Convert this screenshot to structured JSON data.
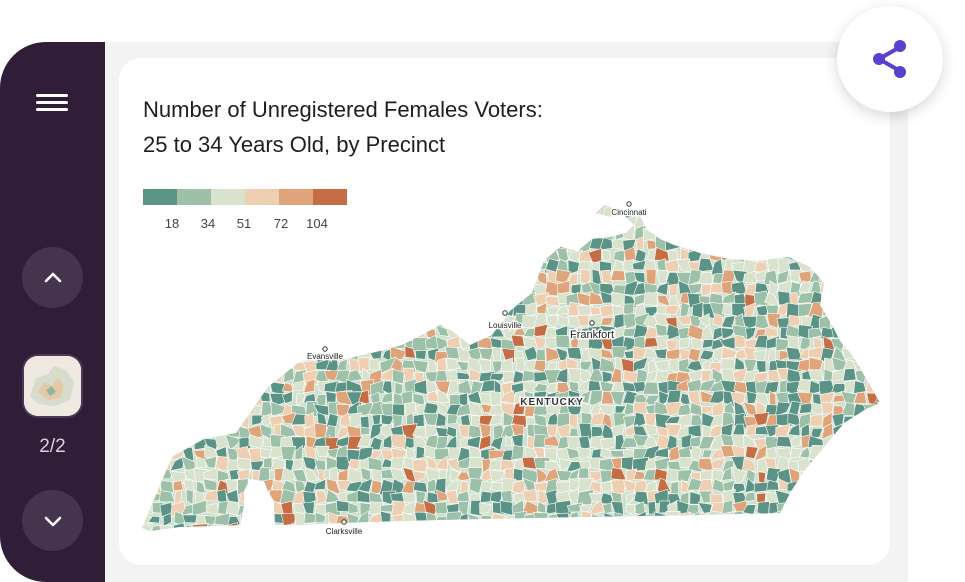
{
  "title": {
    "line1": "Number of Unregistered Females Voters:",
    "line2": "25 to 34 Years Old, by Precinct"
  },
  "legend": {
    "colors": [
      "#5b9486",
      "#9dc0a8",
      "#d8e2cc",
      "#eecfb2",
      "#e0a47a",
      "#c56d45"
    ],
    "labels": [
      "18",
      "34",
      "51",
      "72",
      "104"
    ]
  },
  "map": {
    "state_label": "KENTUCKY",
    "cities": [
      "Cincinnati",
      "Louisville",
      "Frankfort",
      "Evansville",
      "Clarksville"
    ],
    "precinct_colors": [
      "#5b9486",
      "#9dc0a8",
      "#d8e2cc",
      "#eecfb2",
      "#e0a47a",
      "#c56d45"
    ]
  },
  "sidebar": {
    "menu_icon": "hamburger-menu-icon",
    "up_icon": "chevron-up-icon",
    "down_icon": "chevron-down-icon",
    "page_counter": "2/2",
    "bg_color": "#301d38"
  },
  "share": {
    "icon": "share-icon",
    "color": "#5a3fd1"
  }
}
